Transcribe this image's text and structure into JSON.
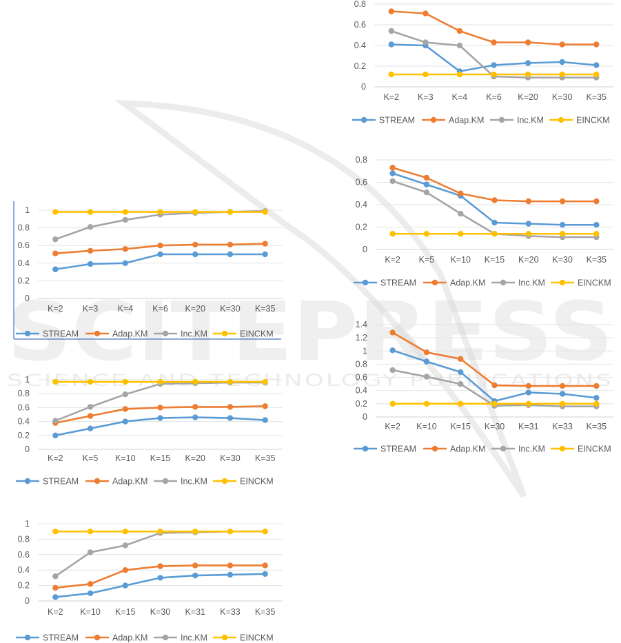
{
  "series_names": [
    "STREAM",
    "Adap.KM",
    "Inc.KM",
    "EINCKM"
  ],
  "series_colors": [
    "#5B9BD5",
    "#ED7D31",
    "#A5A5A5",
    "#FFC000"
  ],
  "watermark": {
    "line1": "SCITEPRESS",
    "line2": "SCIENCE AND TECHNOLOGY PUBLICATIONS"
  },
  "chart_data": [
    {
      "type": "line",
      "categories": [
        "K=2",
        "K=3",
        "K=4",
        "K=6",
        "K=20",
        "K=30",
        "K=35"
      ],
      "ylim": [
        0,
        1
      ],
      "yticks": [
        0,
        0.2,
        0.4,
        0.6,
        0.8,
        1
      ],
      "grid": true,
      "legend": "bottom",
      "series": [
        {
          "name": "STREAM",
          "values": [
            0.33,
            0.39,
            0.4,
            0.5,
            0.5,
            0.5,
            0.5
          ]
        },
        {
          "name": "Adap.KM",
          "values": [
            0.51,
            0.54,
            0.56,
            0.6,
            0.61,
            0.61,
            0.62
          ]
        },
        {
          "name": "Inc.KM",
          "values": [
            0.67,
            0.81,
            0.89,
            0.95,
            0.97,
            0.98,
            0.99
          ]
        },
        {
          "name": "EINCKM",
          "values": [
            0.98,
            0.98,
            0.98,
            0.98,
            0.98,
            0.98,
            0.98
          ]
        }
      ]
    },
    {
      "type": "line",
      "categories": [
        "K=2",
        "K=5",
        "K=10",
        "K=15",
        "K=20",
        "K=30",
        "K=35"
      ],
      "ylim": [
        0,
        1
      ],
      "yticks": [
        0,
        0.2,
        0.4,
        0.6,
        0.8,
        1
      ],
      "grid": true,
      "legend": "bottom",
      "series": [
        {
          "name": "STREAM",
          "values": [
            0.2,
            0.3,
            0.4,
            0.45,
            0.46,
            0.45,
            0.42
          ]
        },
        {
          "name": "Adap.KM",
          "values": [
            0.38,
            0.48,
            0.58,
            0.6,
            0.61,
            0.61,
            0.62
          ]
        },
        {
          "name": "Inc.KM",
          "values": [
            0.41,
            0.61,
            0.79,
            0.94,
            0.95,
            0.96,
            0.96
          ]
        },
        {
          "name": "EINCKM",
          "values": [
            0.97,
            0.97,
            0.97,
            0.97,
            0.97,
            0.97,
            0.97
          ]
        }
      ]
    },
    {
      "type": "line",
      "categories": [
        "K=2",
        "K=10",
        "K=15",
        "K=30",
        "K=31",
        "K=33",
        "K=35"
      ],
      "ylim": [
        0,
        1
      ],
      "yticks": [
        0,
        0.2,
        0.4,
        0.6,
        0.8,
        1
      ],
      "grid": true,
      "legend": "bottom",
      "series": [
        {
          "name": "STREAM",
          "values": [
            0.05,
            0.1,
            0.2,
            0.3,
            0.33,
            0.34,
            0.35
          ]
        },
        {
          "name": "Adap.KM",
          "values": [
            0.17,
            0.22,
            0.4,
            0.45,
            0.46,
            0.46,
            0.46
          ]
        },
        {
          "name": "Inc.KM",
          "values": [
            0.32,
            0.63,
            0.72,
            0.88,
            0.89,
            0.9,
            0.9
          ]
        },
        {
          "name": "EINCKM",
          "values": [
            0.9,
            0.9,
            0.9,
            0.9,
            0.9,
            0.9,
            0.9
          ]
        }
      ]
    },
    {
      "type": "line",
      "categories": [
        "K=2",
        "K=3",
        "K=4",
        "K=6",
        "K=20",
        "K=30",
        "K=35"
      ],
      "ylim": [
        0,
        0.8
      ],
      "yticks": [
        0,
        0.2,
        0.4,
        0.6,
        0.8
      ],
      "grid": true,
      "legend": "bottom",
      "series": [
        {
          "name": "STREAM",
          "values": [
            0.41,
            0.4,
            0.15,
            0.21,
            0.23,
            0.24,
            0.21
          ]
        },
        {
          "name": "Adap.KM",
          "values": [
            0.73,
            0.71,
            0.54,
            0.43,
            0.43,
            0.41,
            0.41
          ]
        },
        {
          "name": "Inc.KM",
          "values": [
            0.54,
            0.43,
            0.4,
            0.1,
            0.09,
            0.09,
            0.09
          ]
        },
        {
          "name": "EINCKM",
          "values": [
            0.12,
            0.12,
            0.12,
            0.12,
            0.12,
            0.12,
            0.12
          ]
        }
      ]
    },
    {
      "type": "line",
      "categories": [
        "K=2",
        "K=5",
        "K=10",
        "K=15",
        "K=20",
        "K=30",
        "K=35"
      ],
      "ylim": [
        0,
        0.8
      ],
      "yticks": [
        0,
        0.2,
        0.4,
        0.6,
        0.8
      ],
      "grid": true,
      "legend": "bottom",
      "series": [
        {
          "name": "STREAM",
          "values": [
            0.68,
            0.58,
            0.48,
            0.24,
            0.23,
            0.22,
            0.22
          ]
        },
        {
          "name": "Adap.KM",
          "values": [
            0.73,
            0.64,
            0.5,
            0.44,
            0.43,
            0.43,
            0.43
          ]
        },
        {
          "name": "Inc.KM",
          "values": [
            0.61,
            0.51,
            0.32,
            0.14,
            0.12,
            0.11,
            0.11
          ]
        },
        {
          "name": "EINCKM",
          "values": [
            0.14,
            0.14,
            0.14,
            0.14,
            0.14,
            0.14,
            0.14
          ]
        }
      ]
    },
    {
      "type": "line",
      "categories": [
        "K=2",
        "K=10",
        "K=15",
        "K=30",
        "K=31",
        "K=33",
        "K=35"
      ],
      "ylim": [
        0,
        1.4
      ],
      "yticks": [
        0,
        0.2,
        0.4,
        0.6,
        0.8,
        1,
        1.2,
        1.4
      ],
      "grid": true,
      "legend": "bottom",
      "series": [
        {
          "name": "STREAM",
          "values": [
            1.01,
            0.84,
            0.68,
            0.24,
            0.37,
            0.35,
            0.29
          ]
        },
        {
          "name": "Adap.KM",
          "values": [
            1.28,
            0.98,
            0.88,
            0.48,
            0.47,
            0.47,
            0.47
          ]
        },
        {
          "name": "Inc.KM",
          "values": [
            0.71,
            0.61,
            0.5,
            0.17,
            0.18,
            0.16,
            0.16
          ]
        },
        {
          "name": "EINCKM",
          "values": [
            0.2,
            0.2,
            0.2,
            0.2,
            0.2,
            0.2,
            0.2
          ]
        }
      ]
    }
  ]
}
